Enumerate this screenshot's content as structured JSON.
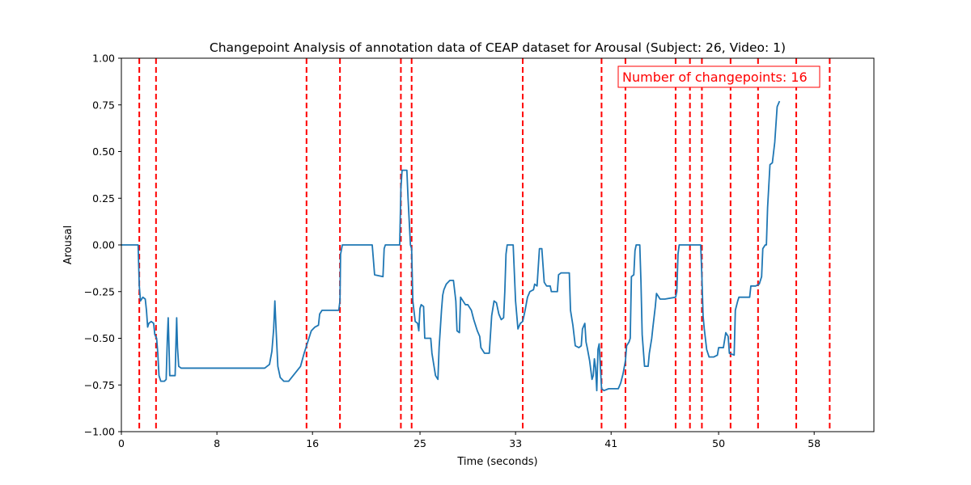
{
  "chart_data": {
    "type": "line",
    "title": "Changepoint Analysis of annotation data of CEAP dataset for Arousal (Subject: 26, Video: 1)",
    "xlabel": "Time (seconds)",
    "ylabel": "Arousal",
    "xlim": [
      0,
      63
    ],
    "ylim": [
      -1.0,
      1.0
    ],
    "x_ticks": [
      0,
      8,
      16,
      25,
      33,
      41,
      50,
      58
    ],
    "x_tick_labels": [
      "0",
      "8",
      "16",
      "25",
      "33",
      "41",
      "50",
      "58"
    ],
    "y_ticks": [
      -1.0,
      -0.75,
      -0.5,
      -0.25,
      0.0,
      0.25,
      0.5,
      0.75,
      1.0
    ],
    "y_tick_labels": [
      "−1.00",
      "−0.75",
      "−0.50",
      "−0.25",
      "0.00",
      "0.25",
      "0.50",
      "0.75",
      "1.00"
    ],
    "grid": false,
    "annotation": "Number of changepoints: 16",
    "changepoint_color": "#ff0000",
    "line_color": "#1f77b4",
    "changepoints": [
      1.5,
      2.9,
      15.5,
      18.3,
      23.4,
      24.3,
      33.6,
      40.2,
      42.2,
      46.4,
      47.6,
      48.6,
      51.0,
      53.3,
      56.5,
      59.3
    ],
    "series": [
      {
        "points": [
          [
            0.0,
            0.0
          ],
          [
            1.4,
            0.0
          ],
          [
            1.5,
            -0.22
          ],
          [
            1.6,
            -0.3
          ],
          [
            1.8,
            -0.28
          ],
          [
            2.0,
            -0.29
          ],
          [
            2.1,
            -0.35
          ],
          [
            2.2,
            -0.44
          ],
          [
            2.3,
            -0.42
          ],
          [
            2.5,
            -0.41
          ],
          [
            2.7,
            -0.42
          ],
          [
            2.8,
            -0.48
          ],
          [
            2.95,
            -0.5
          ],
          [
            3.05,
            -0.58
          ],
          [
            3.15,
            -0.7
          ],
          [
            3.3,
            -0.73
          ],
          [
            3.6,
            -0.73
          ],
          [
            3.75,
            -0.72
          ],
          [
            3.85,
            -0.5
          ],
          [
            3.92,
            -0.39
          ],
          [
            3.99,
            -0.55
          ],
          [
            4.05,
            -0.7
          ],
          [
            4.5,
            -0.7
          ],
          [
            4.58,
            -0.5
          ],
          [
            4.63,
            -0.39
          ],
          [
            4.7,
            -0.55
          ],
          [
            4.8,
            -0.65
          ],
          [
            5.0,
            -0.66
          ],
          [
            8.0,
            -0.66
          ],
          [
            12.0,
            -0.66
          ],
          [
            12.4,
            -0.64
          ],
          [
            12.6,
            -0.57
          ],
          [
            12.75,
            -0.45
          ],
          [
            12.85,
            -0.3
          ],
          [
            12.95,
            -0.45
          ],
          [
            13.1,
            -0.65
          ],
          [
            13.3,
            -0.71
          ],
          [
            13.6,
            -0.73
          ],
          [
            14.0,
            -0.73
          ],
          [
            14.5,
            -0.69
          ],
          [
            15.0,
            -0.65
          ],
          [
            15.3,
            -0.58
          ],
          [
            15.6,
            -0.52
          ],
          [
            15.9,
            -0.46
          ],
          [
            16.2,
            -0.44
          ],
          [
            16.5,
            -0.43
          ],
          [
            16.6,
            -0.37
          ],
          [
            16.8,
            -0.35
          ],
          [
            17.5,
            -0.35
          ],
          [
            18.2,
            -0.35
          ],
          [
            18.3,
            -0.3
          ],
          [
            18.35,
            -0.05
          ],
          [
            18.5,
            0.0
          ],
          [
            21.0,
            0.0
          ],
          [
            21.2,
            -0.16
          ],
          [
            21.9,
            -0.17
          ],
          [
            22.0,
            -0.02
          ],
          [
            22.1,
            0.0
          ],
          [
            23.3,
            0.0
          ],
          [
            23.4,
            0.3
          ],
          [
            23.5,
            0.4
          ],
          [
            23.9,
            0.4
          ],
          [
            24.0,
            0.25
          ],
          [
            24.2,
            0.0
          ],
          [
            24.3,
            -0.02
          ],
          [
            24.4,
            -0.3
          ],
          [
            24.6,
            -0.41
          ],
          [
            24.8,
            -0.42
          ],
          [
            24.9,
            -0.46
          ],
          [
            25.0,
            -0.34
          ],
          [
            25.1,
            -0.32
          ],
          [
            25.3,
            -0.33
          ],
          [
            25.4,
            -0.5
          ],
          [
            25.9,
            -0.5
          ],
          [
            26.0,
            -0.58
          ],
          [
            26.3,
            -0.7
          ],
          [
            26.5,
            -0.72
          ],
          [
            26.6,
            -0.55
          ],
          [
            26.8,
            -0.35
          ],
          [
            26.9,
            -0.27
          ],
          [
            27.0,
            -0.24
          ],
          [
            27.2,
            -0.21
          ],
          [
            27.5,
            -0.19
          ],
          [
            27.8,
            -0.19
          ],
          [
            28.0,
            -0.3
          ],
          [
            28.1,
            -0.46
          ],
          [
            28.3,
            -0.47
          ],
          [
            28.4,
            -0.28
          ],
          [
            28.6,
            -0.3
          ],
          [
            28.8,
            -0.32
          ],
          [
            29.0,
            -0.32
          ],
          [
            29.3,
            -0.35
          ],
          [
            29.5,
            -0.4
          ],
          [
            29.8,
            -0.46
          ],
          [
            30.0,
            -0.49
          ],
          [
            30.1,
            -0.55
          ],
          [
            30.4,
            -0.58
          ],
          [
            30.8,
            -0.58
          ],
          [
            31.0,
            -0.38
          ],
          [
            31.2,
            -0.3
          ],
          [
            31.4,
            -0.31
          ],
          [
            31.6,
            -0.37
          ],
          [
            31.8,
            -0.4
          ],
          [
            32.0,
            -0.39
          ],
          [
            32.1,
            -0.25
          ],
          [
            32.2,
            -0.05
          ],
          [
            32.3,
            0.0
          ],
          [
            32.8,
            0.0
          ],
          [
            32.9,
            -0.15
          ],
          [
            33.0,
            -0.3
          ],
          [
            33.2,
            -0.45
          ],
          [
            33.4,
            -0.42
          ],
          [
            33.6,
            -0.41
          ],
          [
            33.8,
            -0.35
          ],
          [
            34.0,
            -0.28
          ],
          [
            34.2,
            -0.25
          ],
          [
            34.5,
            -0.24
          ],
          [
            34.6,
            -0.21
          ],
          [
            34.8,
            -0.22
          ],
          [
            35.0,
            -0.02
          ],
          [
            35.2,
            -0.02
          ],
          [
            35.4,
            -0.2
          ],
          [
            35.6,
            -0.22
          ],
          [
            35.9,
            -0.22
          ],
          [
            36.0,
            -0.25
          ],
          [
            36.5,
            -0.25
          ],
          [
            36.6,
            -0.16
          ],
          [
            36.8,
            -0.15
          ],
          [
            37.5,
            -0.15
          ],
          [
            37.6,
            -0.35
          ],
          [
            37.8,
            -0.43
          ],
          [
            38.0,
            -0.54
          ],
          [
            38.3,
            -0.55
          ],
          [
            38.5,
            -0.54
          ],
          [
            38.6,
            -0.45
          ],
          [
            38.8,
            -0.42
          ],
          [
            38.9,
            -0.52
          ],
          [
            39.0,
            -0.55
          ],
          [
            39.2,
            -0.62
          ],
          [
            39.3,
            -0.67
          ],
          [
            39.4,
            -0.72
          ],
          [
            39.5,
            -0.7
          ],
          [
            39.6,
            -0.61
          ],
          [
            39.7,
            -0.66
          ],
          [
            39.8,
            -0.78
          ],
          [
            39.9,
            -0.56
          ],
          [
            40.0,
            -0.53
          ],
          [
            40.2,
            -0.77
          ],
          [
            40.4,
            -0.78
          ],
          [
            40.8,
            -0.77
          ],
          [
            41.0,
            -0.77
          ],
          [
            41.6,
            -0.77
          ],
          [
            41.8,
            -0.74
          ],
          [
            42.0,
            -0.69
          ],
          [
            42.2,
            -0.62
          ],
          [
            42.3,
            -0.54
          ],
          [
            42.5,
            -0.52
          ],
          [
            42.6,
            -0.5
          ],
          [
            42.7,
            -0.17
          ],
          [
            42.9,
            -0.16
          ],
          [
            43.0,
            -0.03
          ],
          [
            43.1,
            0.0
          ],
          [
            43.4,
            0.0
          ],
          [
            43.5,
            -0.2
          ],
          [
            43.6,
            -0.48
          ],
          [
            43.8,
            -0.65
          ],
          [
            44.1,
            -0.65
          ],
          [
            44.2,
            -0.58
          ],
          [
            44.4,
            -0.5
          ],
          [
            44.5,
            -0.44
          ],
          [
            44.7,
            -0.33
          ],
          [
            44.8,
            -0.26
          ],
          [
            45.1,
            -0.29
          ],
          [
            45.5,
            -0.29
          ],
          [
            46.4,
            -0.28
          ],
          [
            46.5,
            -0.25
          ],
          [
            46.6,
            -0.05
          ],
          [
            46.7,
            0.0
          ],
          [
            48.5,
            0.0
          ],
          [
            48.6,
            -0.17
          ],
          [
            48.7,
            -0.38
          ],
          [
            48.8,
            -0.45
          ],
          [
            49.0,
            -0.56
          ],
          [
            49.2,
            -0.6
          ],
          [
            49.6,
            -0.6
          ],
          [
            49.9,
            -0.59
          ],
          [
            50.0,
            -0.55
          ],
          [
            50.2,
            -0.55
          ],
          [
            50.4,
            -0.55
          ],
          [
            50.6,
            -0.47
          ],
          [
            50.8,
            -0.49
          ],
          [
            50.9,
            -0.58
          ],
          [
            51.3,
            -0.59
          ],
          [
            51.4,
            -0.35
          ],
          [
            51.6,
            -0.3
          ],
          [
            51.7,
            -0.28
          ],
          [
            52.6,
            -0.28
          ],
          [
            52.7,
            -0.22
          ],
          [
            53.1,
            -0.22
          ],
          [
            53.4,
            -0.21
          ],
          [
            53.6,
            -0.17
          ],
          [
            53.7,
            -0.02
          ],
          [
            53.9,
            0.0
          ],
          [
            54.0,
            0.0
          ],
          [
            54.1,
            0.2
          ],
          [
            54.3,
            0.43
          ],
          [
            54.5,
            0.44
          ],
          [
            54.7,
            0.55
          ],
          [
            54.9,
            0.74
          ],
          [
            55.1,
            0.77
          ]
        ]
      }
    ]
  }
}
